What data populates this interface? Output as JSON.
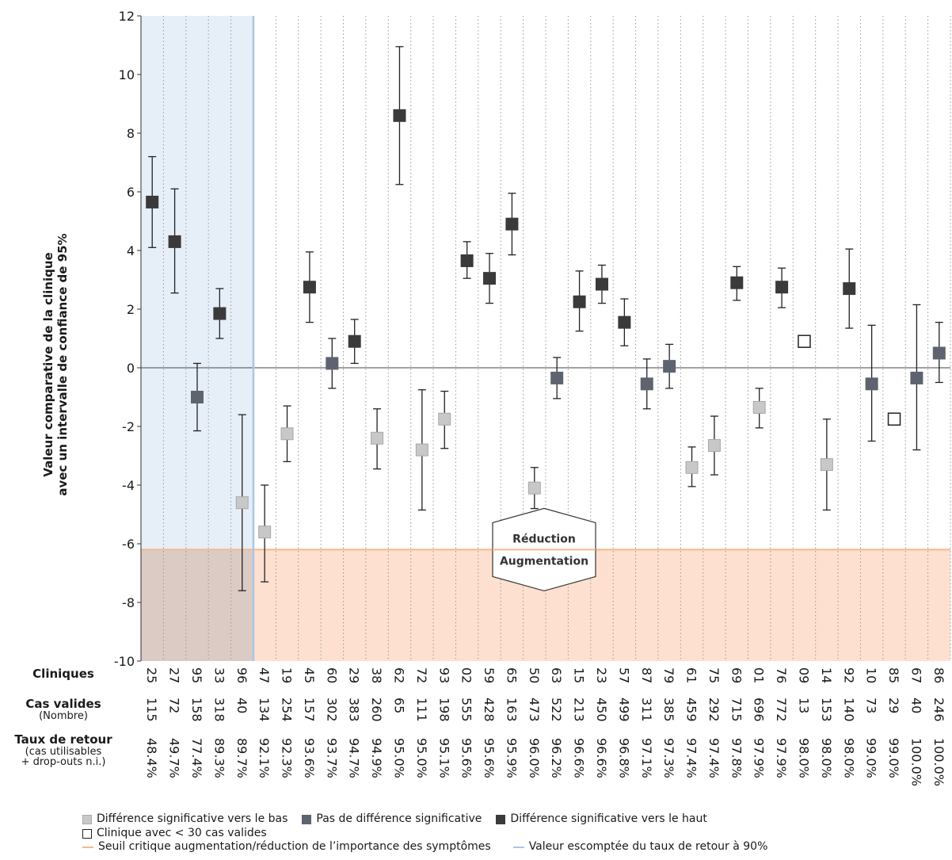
{
  "chart_data": {
    "type": "scatter",
    "subtype": "error-bar",
    "ylabel_line1": "Valeur comparative de la clinique",
    "ylabel_line2": "avec un intervalle de confiance de 95%",
    "ylim": [
      -10,
      12
    ],
    "yticks": [
      "12",
      "10",
      "8",
      "6",
      "4",
      "2",
      "0",
      "-2",
      "-4",
      "-6",
      "-8",
      "-10"
    ],
    "threshold_value": -6.2,
    "highlight_columns": 5,
    "grid": "vertical-dotted",
    "row_labels": {
      "clinics": "Cliniques",
      "valid_cases": "Cas valides",
      "valid_cases_sub": "(Nombre)",
      "return_rate": "Taux de retour",
      "return_rate_sub1": "(cas utilisables",
      "return_rate_sub2": "+ drop-outs n.i.)"
    },
    "annotation": {
      "top": "Réduction",
      "bottom": "Augmentation"
    },
    "colors": {
      "low": "#c8c8c8",
      "none": "#5d6470",
      "high": "#3a3a3a",
      "small": "#ffffff",
      "threshold": "#f5b98e",
      "threshold_fill": "#fde0cf",
      "expected_line": "#a9c6e6",
      "expected_fill": "#e6eef8"
    },
    "clinics": [
      {
        "clinic": "25",
        "n": "115",
        "rate": "48.4%",
        "value": 5.65,
        "lo": 4.1,
        "hi": 7.2,
        "cat": "high"
      },
      {
        "clinic": "27",
        "n": "72",
        "rate": "49.7%",
        "value": 4.3,
        "lo": 2.55,
        "hi": 6.1,
        "cat": "high"
      },
      {
        "clinic": "95",
        "n": "158",
        "rate": "77.4%",
        "value": -1.0,
        "lo": -2.15,
        "hi": 0.15,
        "cat": "none"
      },
      {
        "clinic": "33",
        "n": "318",
        "rate": "89.3%",
        "value": 1.85,
        "lo": 1.0,
        "hi": 2.7,
        "cat": "high"
      },
      {
        "clinic": "96",
        "n": "40",
        "rate": "89.7%",
        "value": -4.6,
        "lo": -7.6,
        "hi": -1.6,
        "cat": "low"
      },
      {
        "clinic": "47",
        "n": "134",
        "rate": "92.1%",
        "value": -5.6,
        "lo": -7.3,
        "hi": -4.0,
        "cat": "low"
      },
      {
        "clinic": "19",
        "n": "254",
        "rate": "92.3%",
        "value": -2.25,
        "lo": -3.2,
        "hi": -1.3,
        "cat": "low"
      },
      {
        "clinic": "45",
        "n": "157",
        "rate": "93.6%",
        "value": 2.75,
        "lo": 1.55,
        "hi": 3.95,
        "cat": "high"
      },
      {
        "clinic": "60",
        "n": "302",
        "rate": "93.7%",
        "value": 0.15,
        "lo": -0.7,
        "hi": 1.0,
        "cat": "none"
      },
      {
        "clinic": "29",
        "n": "383",
        "rate": "94.7%",
        "value": 0.9,
        "lo": 0.15,
        "hi": 1.65,
        "cat": "high"
      },
      {
        "clinic": "38",
        "n": "260",
        "rate": "94.9%",
        "value": -2.4,
        "lo": -3.45,
        "hi": -1.4,
        "cat": "low"
      },
      {
        "clinic": "62",
        "n": "65",
        "rate": "95.0%",
        "value": 8.6,
        "lo": 6.25,
        "hi": 10.95,
        "cat": "high"
      },
      {
        "clinic": "72",
        "n": "111",
        "rate": "95.0%",
        "value": -2.8,
        "lo": -4.85,
        "hi": -0.75,
        "cat": "low"
      },
      {
        "clinic": "93",
        "n": "198",
        "rate": "95.1%",
        "value": -1.75,
        "lo": -2.75,
        "hi": -0.8,
        "cat": "low"
      },
      {
        "clinic": "02",
        "n": "555",
        "rate": "95.6%",
        "value": 3.65,
        "lo": 3.05,
        "hi": 4.3,
        "cat": "high"
      },
      {
        "clinic": "59",
        "n": "428",
        "rate": "95.6%",
        "value": 3.05,
        "lo": 2.2,
        "hi": 3.9,
        "cat": "high"
      },
      {
        "clinic": "65",
        "n": "163",
        "rate": "95.9%",
        "value": 4.9,
        "lo": 3.85,
        "hi": 5.95,
        "cat": "high"
      },
      {
        "clinic": "50",
        "n": "473",
        "rate": "96.0%",
        "value": -4.1,
        "lo": -4.8,
        "hi": -3.4,
        "cat": "low"
      },
      {
        "clinic": "63",
        "n": "522",
        "rate": "96.2%",
        "value": -0.35,
        "lo": -1.05,
        "hi": 0.35,
        "cat": "none"
      },
      {
        "clinic": "15",
        "n": "213",
        "rate": "96.6%",
        "value": 2.25,
        "lo": 1.25,
        "hi": 3.3,
        "cat": "high"
      },
      {
        "clinic": "23",
        "n": "450",
        "rate": "96.6%",
        "value": 2.85,
        "lo": 2.2,
        "hi": 3.5,
        "cat": "high"
      },
      {
        "clinic": "57",
        "n": "499",
        "rate": "96.8%",
        "value": 1.55,
        "lo": 0.75,
        "hi": 2.35,
        "cat": "high"
      },
      {
        "clinic": "87",
        "n": "311",
        "rate": "97.1%",
        "value": -0.55,
        "lo": -1.4,
        "hi": 0.3,
        "cat": "none"
      },
      {
        "clinic": "79",
        "n": "385",
        "rate": "97.3%",
        "value": 0.05,
        "lo": -0.7,
        "hi": 0.8,
        "cat": "none"
      },
      {
        "clinic": "61",
        "n": "459",
        "rate": "97.4%",
        "value": -3.4,
        "lo": -4.05,
        "hi": -2.7,
        "cat": "low"
      },
      {
        "clinic": "75",
        "n": "292",
        "rate": "97.4%",
        "value": -2.65,
        "lo": -3.65,
        "hi": -1.65,
        "cat": "low"
      },
      {
        "clinic": "69",
        "n": "715",
        "rate": "97.8%",
        "value": 2.9,
        "lo": 2.3,
        "hi": 3.45,
        "cat": "high"
      },
      {
        "clinic": "01",
        "n": "696",
        "rate": "97.9%",
        "value": -1.35,
        "lo": -2.05,
        "hi": -0.7,
        "cat": "low"
      },
      {
        "clinic": "76",
        "n": "772",
        "rate": "97.9%",
        "value": 2.75,
        "lo": 2.05,
        "hi": 3.4,
        "cat": "high"
      },
      {
        "clinic": "09",
        "n": "13",
        "rate": "98.0%",
        "value": 0.9,
        "lo": null,
        "hi": null,
        "cat": "small"
      },
      {
        "clinic": "14",
        "n": "153",
        "rate": "98.0%",
        "value": -3.3,
        "lo": -4.85,
        "hi": -1.75,
        "cat": "low"
      },
      {
        "clinic": "92",
        "n": "140",
        "rate": "98.0%",
        "value": 2.7,
        "lo": 1.35,
        "hi": 4.05,
        "cat": "high"
      },
      {
        "clinic": "10",
        "n": "73",
        "rate": "99.0%",
        "value": -0.55,
        "lo": -2.5,
        "hi": 1.45,
        "cat": "none"
      },
      {
        "clinic": "85",
        "n": "29",
        "rate": "99.0%",
        "value": -1.75,
        "lo": null,
        "hi": null,
        "cat": "small"
      },
      {
        "clinic": "67",
        "n": "40",
        "rate": "100.0%",
        "value": -0.35,
        "lo": -2.8,
        "hi": 2.15,
        "cat": "none"
      },
      {
        "clinic": "86",
        "n": "246",
        "rate": "100.0%",
        "value": 0.5,
        "lo": -0.5,
        "hi": 1.55,
        "cat": "none"
      }
    ]
  },
  "legend": {
    "low": "Différence significative vers le bas",
    "none": "Pas de différence significative",
    "high": "Différence significative vers le haut",
    "small": "Clinique avec < 30 cas valides",
    "threshold": "Seuil critique augmentation/réduction de l’importance des symptômes",
    "expected": "Valeur escomptée du taux de retour à 90%"
  }
}
